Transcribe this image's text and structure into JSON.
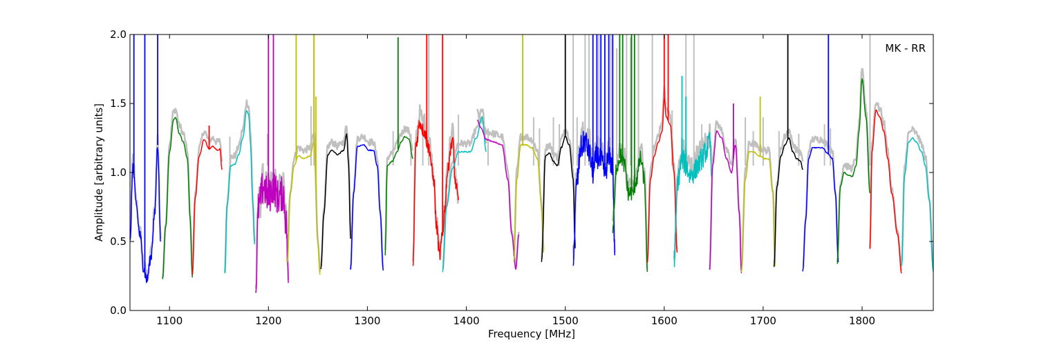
{
  "chart_data": {
    "type": "line",
    "title": "",
    "annotation": "MK - RR",
    "xlabel": "Frequency [MHz]",
    "ylabel": "Amplitude [arbitrary units]",
    "xlim": [
      1060,
      1872
    ],
    "ylim": [
      0.0,
      2.0
    ],
    "xticks": [
      1100,
      1200,
      1300,
      1400,
      1500,
      1600,
      1700,
      1800
    ],
    "xtick_labels": [
      "1100",
      "1200",
      "1300",
      "1400",
      "1500",
      "1600",
      "1700",
      "1800"
    ],
    "yticks": [
      0.0,
      0.5,
      1.0,
      1.5,
      2.0
    ],
    "ytick_labels": [
      "0.0",
      "0.5",
      "1.0",
      "1.5",
      "2.0"
    ],
    "grid": false,
    "background_series_color": "#c0c0c0",
    "band_colors": [
      "#0000ff",
      "#008000",
      "#ff0000",
      "#00bfbf",
      "#bf00bf",
      "#bfbf00",
      "#000000"
    ],
    "bands": [
      {
        "x": [
          1060,
          1063,
          1066,
          1070,
          1074,
          1077,
          1081,
          1085,
          1088,
          1091
        ],
        "y": [
          0.48,
          1.05,
          0.78,
          0.55,
          0.3,
          0.22,
          0.38,
          0.7,
          1.2,
          0.5
        ],
        "color": "#0000ff",
        "noise": 0.04,
        "spikes": [
          [
            1064,
            2.0
          ],
          [
            1075,
            2.0
          ],
          [
            1088,
            2.0
          ]
        ]
      },
      {
        "x": [
          1093,
          1096,
          1100,
          1104,
          1106,
          1110,
          1114,
          1118,
          1121,
          1123
        ],
        "y": [
          0.23,
          0.6,
          1.15,
          1.38,
          1.4,
          1.28,
          1.22,
          1.1,
          0.65,
          0.24
        ],
        "color": "#008000"
      },
      {
        "x": [
          1123,
          1126,
          1130,
          1135,
          1140,
          1144,
          1148,
          1151,
          1153
        ],
        "y": [
          0.26,
          0.82,
          1.12,
          1.24,
          1.17,
          1.19,
          1.16,
          1.17,
          1.02
        ],
        "color": "#ff0000",
        "spikes": [
          [
            1140,
            1.34
          ]
        ]
      },
      {
        "x": [
          1156,
          1158,
          1162,
          1166,
          1170,
          1174,
          1178,
          1180,
          1182,
          1184,
          1186
        ],
        "y": [
          0.27,
          0.75,
          1.05,
          1.06,
          1.13,
          1.25,
          1.45,
          1.42,
          1.2,
          0.8,
          0.48
        ],
        "color": "#00bfbf"
      },
      {
        "x": [
          1187,
          1190,
          1195,
          1200,
          1205,
          1210,
          1215,
          1218,
          1220
        ],
        "y": [
          0.14,
          0.75,
          0.9,
          0.82,
          0.9,
          0.82,
          0.85,
          0.62,
          0.2
        ],
        "color": "#bf00bf",
        "noise": 0.13,
        "spikes": [
          [
            1200,
            2.0
          ],
          [
            1205,
            2.0
          ]
        ]
      },
      {
        "x": [
          1219,
          1222,
          1226,
          1230,
          1236,
          1242,
          1246,
          1250,
          1252
        ],
        "y": [
          0.35,
          0.85,
          1.05,
          1.12,
          1.1,
          1.12,
          1.22,
          0.5,
          0.26
        ],
        "color": "#bfbf00",
        "spikes": [
          [
            1228,
            2.0
          ],
          [
            1246,
            2.0
          ],
          [
            1248,
            1.55
          ]
        ]
      },
      {
        "x": [
          1253,
          1256,
          1260,
          1264,
          1270,
          1276,
          1279,
          1281,
          1283
        ],
        "y": [
          0.3,
          0.7,
          1.13,
          1.16,
          1.13,
          1.16,
          1.28,
          1.05,
          0.52
        ],
        "color": "#000000"
      },
      {
        "x": [
          1283,
          1286,
          1290,
          1296,
          1302,
          1306,
          1310,
          1313,
          1316
        ],
        "y": [
          0.3,
          0.85,
          1.19,
          1.2,
          1.16,
          1.16,
          1.05,
          0.7,
          0.29
        ],
        "color": "#0000ff"
      },
      {
        "x": [
          1318,
          1320,
          1325,
          1330,
          1334,
          1338,
          1342,
          1346
        ],
        "y": [
          0.4,
          1.05,
          1.08,
          1.15,
          1.22,
          1.26,
          1.24,
          1.1
        ],
        "color": "#008000",
        "spikes": [
          [
            1331,
            1.98
          ]
        ]
      },
      {
        "x": [
          1346,
          1349,
          1353,
          1357,
          1362,
          1367,
          1370,
          1373,
          1376,
          1378,
          1381,
          1384,
          1386,
          1389,
          1392
        ],
        "y": [
          0.3,
          1.2,
          1.36,
          1.3,
          1.18,
          0.95,
          0.6,
          0.4,
          0.55,
          0.72,
          1.0,
          1.16,
          1.25,
          0.92,
          0.8
        ],
        "color": "#ff0000",
        "noise": 0.05,
        "spikes": [
          [
            1360,
            2.0
          ],
          [
            1376,
            2.0
          ]
        ]
      },
      {
        "x": [
          1376,
          1380,
          1386,
          1392,
          1398,
          1404,
          1410,
          1416,
          1420
        ],
        "y": [
          0.28,
          0.75,
          1.03,
          1.15,
          1.15,
          1.15,
          1.25,
          1.4,
          1.15
        ],
        "color": "#00bfbf"
      },
      {
        "x": [
          1411,
          1415,
          1420,
          1428,
          1436,
          1442,
          1446,
          1450,
          1453
        ],
        "y": [
          1.38,
          1.32,
          1.24,
          1.22,
          1.2,
          0.95,
          0.55,
          0.3,
          0.55
        ],
        "color": "#bf00bf"
      },
      {
        "x": [
          1448,
          1451,
          1455,
          1460,
          1466,
          1472,
          1476,
          1478
        ],
        "y": [
          0.35,
          0.95,
          1.2,
          1.2,
          1.18,
          1.1,
          0.75,
          0.42
        ],
        "color": "#bfbf00",
        "spikes": [
          [
            1457,
            2.0
          ]
        ]
      },
      {
        "x": [
          1476,
          1480,
          1484,
          1488,
          1492,
          1496,
          1500,
          1504,
          1508,
          1510
        ],
        "y": [
          0.35,
          1.12,
          1.14,
          1.08,
          1.05,
          1.18,
          1.26,
          1.2,
          0.95,
          0.45
        ],
        "color": "#000000",
        "spikes": [
          [
            1500,
            2.0
          ]
        ]
      },
      {
        "x": [
          1508,
          1512,
          1516,
          1520,
          1524,
          1528,
          1532,
          1536,
          1540,
          1544,
          1548,
          1550
        ],
        "y": [
          0.4,
          0.95,
          1.18,
          1.23,
          1.15,
          1.0,
          1.12,
          1.08,
          1.0,
          1.1,
          1.05,
          0.4
        ],
        "color": "#0000ff",
        "noise": 0.09,
        "spikes": [
          [
            1528,
            2.0
          ],
          [
            1532,
            2.0
          ],
          [
            1536,
            2.0
          ],
          [
            1540,
            2.0
          ],
          [
            1544,
            2.0
          ],
          [
            1548,
            2.0
          ]
        ]
      },
      {
        "x": [
          1548,
          1552,
          1556,
          1560,
          1564,
          1568,
          1572,
          1576,
          1580,
          1583
        ],
        "y": [
          0.6,
          1.05,
          1.12,
          1.05,
          0.85,
          0.85,
          0.95,
          1.1,
          0.95,
          0.28
        ],
        "color": "#008000",
        "noise": 0.06,
        "spikes": [
          [
            1555,
            2.0
          ],
          [
            1558,
            2.0
          ],
          [
            1567,
            2.0
          ],
          [
            1570,
            2.0
          ]
        ]
      },
      {
        "x": [
          1583,
          1586,
          1590,
          1594,
          1598,
          1600,
          1602,
          1606,
          1610,
          1613
        ],
        "y": [
          0.35,
          0.95,
          1.12,
          1.22,
          1.3,
          1.55,
          1.4,
          1.35,
          1.0,
          0.42
        ],
        "color": "#ff0000",
        "spikes": [
          [
            1600,
            2.0
          ],
          [
            1604,
            2.0
          ]
        ]
      },
      {
        "x": [
          1610,
          1614,
          1618,
          1622,
          1626,
          1630,
          1634,
          1638,
          1642,
          1646,
          1648
        ],
        "y": [
          0.38,
          0.95,
          1.1,
          1.05,
          0.98,
          1.0,
          1.05,
          1.1,
          1.15,
          1.22,
          1.0
        ],
        "color": "#00bfbf",
        "noise": 0.08,
        "spikes": [
          [
            1618,
            1.7
          ],
          [
            1622,
            1.55
          ]
        ]
      },
      {
        "x": [
          1646,
          1649,
          1653,
          1658,
          1663,
          1668,
          1672,
          1676,
          1678
        ],
        "y": [
          0.3,
          1.05,
          1.3,
          1.25,
          1.1,
          1.0,
          1.2,
          0.7,
          0.27
        ],
        "color": "#bf00bf",
        "spikes": [
          [
            1670,
            1.5
          ]
        ]
      },
      {
        "x": [
          1678,
          1682,
          1686,
          1690,
          1696,
          1702,
          1706,
          1710,
          1712
        ],
        "y": [
          0.28,
          0.95,
          1.15,
          1.15,
          1.12,
          1.1,
          1.1,
          0.85,
          0.32
        ],
        "color": "#bfbf00",
        "spikes": [
          [
            1697,
            1.55
          ]
        ]
      },
      {
        "x": [
          1711,
          1714,
          1718,
          1722,
          1726,
          1730,
          1734,
          1738,
          1740
        ],
        "y": [
          0.32,
          0.9,
          1.12,
          1.2,
          1.25,
          1.15,
          1.1,
          1.08,
          1.02
        ],
        "color": "#000000",
        "spikes": [
          [
            1725,
            2.0
          ]
        ]
      },
      {
        "x": [
          1740,
          1743,
          1746,
          1750,
          1755,
          1760,
          1765,
          1770,
          1773,
          1776
        ],
        "y": [
          0.28,
          0.65,
          1.1,
          1.18,
          1.18,
          1.18,
          1.14,
          1.1,
          0.85,
          0.35
        ],
        "color": "#0000ff",
        "spikes": [
          [
            1766,
            2.0
          ]
        ]
      },
      {
        "x": [
          1775,
          1778,
          1782,
          1786,
          1790,
          1794,
          1797,
          1800,
          1804,
          1808
        ],
        "y": [
          0.34,
          0.9,
          1.0,
          0.98,
          0.97,
          1.05,
          1.3,
          1.68,
          1.4,
          0.85
        ],
        "color": "#008000"
      },
      {
        "x": [
          1808,
          1810,
          1814,
          1818,
          1822,
          1826,
          1830,
          1836,
          1840
        ],
        "y": [
          0.45,
          1.15,
          1.45,
          1.4,
          1.3,
          1.1,
          0.85,
          0.55,
          0.27
        ],
        "color": "#ff0000"
      },
      {
        "x": [
          1840,
          1843,
          1847,
          1851,
          1855,
          1860,
          1864,
          1868,
          1872
        ],
        "y": [
          0.32,
          0.98,
          1.22,
          1.25,
          1.22,
          1.15,
          1.05,
          0.8,
          0.28
        ],
        "color": "#00bfbf"
      }
    ],
    "grey_spikes": [
      [
        1161,
        1.26
      ],
      [
        1199,
        1.28
      ],
      [
        1243,
        1.48
      ],
      [
        1246,
        2.0
      ],
      [
        1326,
        1.3
      ],
      [
        1344,
        1.28
      ],
      [
        1356,
        1.38
      ],
      [
        1362,
        2.0
      ],
      [
        1392,
        1.42
      ],
      [
        1422,
        1.32
      ],
      [
        1468,
        1.4
      ],
      [
        1474,
        1.32
      ],
      [
        1488,
        1.4
      ],
      [
        1494,
        1.35
      ],
      [
        1508,
        2.0
      ],
      [
        1512,
        1.4
      ],
      [
        1520,
        2.0
      ],
      [
        1524,
        2.0
      ],
      [
        1534,
        2.0
      ],
      [
        1546,
        2.0
      ],
      [
        1552,
        1.9
      ],
      [
        1562,
        2.0
      ],
      [
        1566,
        1.98
      ],
      [
        1574,
        2.0
      ],
      [
        1588,
        2.0
      ],
      [
        1608,
        1.45
      ],
      [
        1622,
        2.0
      ],
      [
        1630,
        2.0
      ],
      [
        1638,
        1.35
      ],
      [
        1682,
        1.4
      ],
      [
        1690,
        1.3
      ],
      [
        1700,
        1.4
      ],
      [
        1716,
        1.3
      ],
      [
        1736,
        1.28
      ],
      [
        1762,
        1.35
      ],
      [
        1768,
        1.32
      ],
      [
        1808,
        2.0
      ]
    ]
  }
}
